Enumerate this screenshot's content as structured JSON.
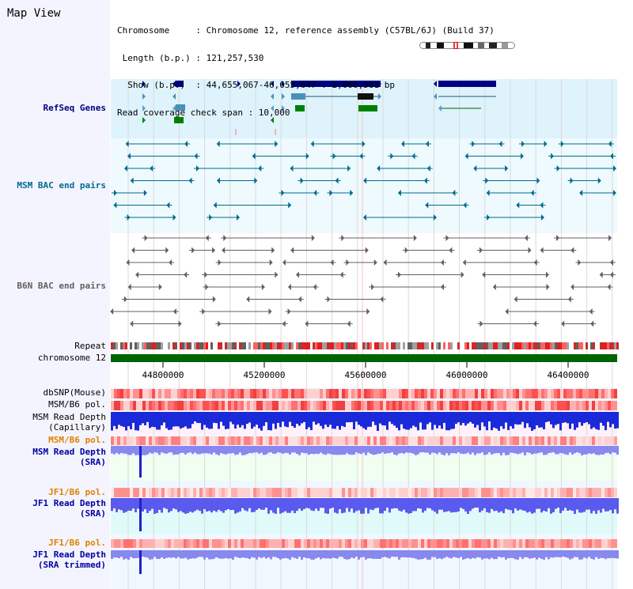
{
  "header": {
    "title": "Map View",
    "info_lines": [
      "Chromosome     : Chromosome 12, reference assembly (C57BL/6J) (Build 37)",
      " Length (b.p.) : 121,257,530",
      "  Show (b.p.)  : 44,655,067-46,655,647 : 2,000,581 bp",
      "Read coverage check span : 10,000"
    ]
  },
  "tracks": {
    "refseq": "RefSeq Genes",
    "msm_bac": "MSM BAC end pairs",
    "b6n_bac": "B6N BAC end pairs",
    "repeat": "Repeat",
    "chromosome": "chromosome 12",
    "dbsnp": "dbSNP(Mouse)",
    "msm_b6_pol_1": "MSM/B6 pol.",
    "msm_read_depth_cap_1": "MSM Read Depth",
    "msm_read_depth_cap_2": "(Capillary)",
    "msm_b6_pol_2": "MSM/B6 pol.",
    "msm_read_depth_sra_1": "MSM Read Depth",
    "msm_read_depth_sra_2": "(SRA)",
    "jf1_b6_pol_1": "JF1/B6 pol.",
    "jf1_read_depth_sra_1": "JF1 Read Depth",
    "jf1_read_depth_sra_2": "(SRA)",
    "jf1_b6_pol_2": "JF1/B6 pol.",
    "jf1_read_depth_trim_1": "JF1 Read Depth",
    "jf1_read_depth_trim_2": "(SRA trimmed)"
  },
  "axis": {
    "ticks": [
      "44800000",
      "45200000",
      "45600000",
      "46000000",
      "46400000"
    ]
  },
  "colors": {
    "navy": "#000080",
    "teal": "#006b8f",
    "gray": "#606060",
    "orange": "#e08000",
    "refseq_bg": "#def3fb",
    "msm_bg": "#eefafd",
    "chrom_green": "#006400"
  }
}
